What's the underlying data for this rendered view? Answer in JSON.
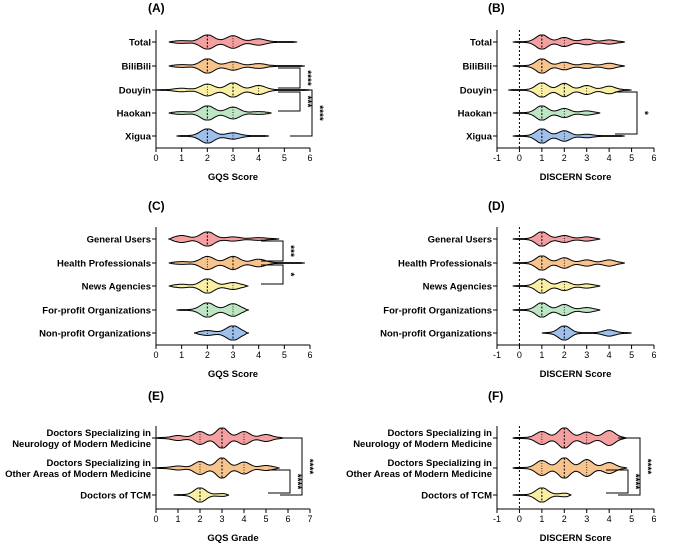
{
  "colors": {
    "red": "#f4a0a0",
    "orange": "#f7c48e",
    "yellow": "#f9f0a6",
    "green": "#bfe6c4",
    "blue": "#9fc0ea"
  },
  "chart_data": [
    {
      "panel": "(A)",
      "type": "violin",
      "xlabel": "GQS Score",
      "xlim": [
        0,
        6
      ],
      "xticks": [
        0,
        1,
        2,
        3,
        4,
        5,
        6
      ],
      "zero_line": false,
      "categories": [
        "Total",
        "BiliBili",
        "Douyin",
        "Haokan",
        "Xigua"
      ],
      "series": [
        {
          "name": "Total",
          "color": "red",
          "range": [
            0.5,
            5.5
          ],
          "median": 2,
          "q1": 2,
          "q3": 3,
          "peaks": [
            [
              2,
              1
            ],
            [
              3,
              0.85
            ],
            [
              4,
              0.4
            ],
            [
              1,
              0.15
            ]
          ]
        },
        {
          "name": "BiliBili",
          "color": "orange",
          "range": [
            0.5,
            5.8
          ],
          "median": 2,
          "q1": 2,
          "q3": 3,
          "peaks": [
            [
              2,
              1
            ],
            [
              3,
              0.55
            ],
            [
              4,
              0.3
            ],
            [
              1,
              0.15
            ]
          ]
        },
        {
          "name": "Douyin",
          "color": "yellow",
          "range": [
            0,
            6
          ],
          "median": 3,
          "q1": 2,
          "q3": 4,
          "peaks": [
            [
              2,
              0.8
            ],
            [
              3,
              1
            ],
            [
              4,
              0.6
            ],
            [
              1,
              0.2
            ]
          ]
        },
        {
          "name": "Haokan",
          "color": "green",
          "range": [
            0.5,
            4.5
          ],
          "median": 2,
          "q1": 2,
          "q3": 3,
          "peaks": [
            [
              2,
              1
            ],
            [
              3,
              0.8
            ],
            [
              1,
              0.15
            ],
            [
              4,
              0.15
            ]
          ]
        },
        {
          "name": "Xigua",
          "color": "blue",
          "range": [
            0.8,
            4.4
          ],
          "median": 2,
          "q1": 2,
          "q3": 3,
          "peaks": [
            [
              2,
              1
            ],
            [
              3,
              0.4
            ]
          ]
        }
      ],
      "brackets": [
        {
          "from": "BiliBili",
          "to": "Douyin",
          "label": "****",
          "level": 0
        },
        {
          "from": "Douyin",
          "to": "Haokan",
          "label": "***",
          "level": 0
        },
        {
          "from": "Douyin",
          "to": "Xigua",
          "label": "****",
          "level": 1
        }
      ]
    },
    {
      "panel": "(B)",
      "type": "violin",
      "xlabel": "DISCERN Score",
      "xlim": [
        -1,
        6
      ],
      "xticks": [
        -1,
        0,
        1,
        2,
        3,
        4,
        5,
        6
      ],
      "zero_line": true,
      "categories": [
        "Total",
        "BiliBili",
        "Douyin",
        "Haokan",
        "Xigua"
      ],
      "series": [
        {
          "name": "Total",
          "color": "red",
          "range": [
            -0.3,
            4.7
          ],
          "median": 1,
          "q1": 1,
          "q3": 2,
          "peaks": [
            [
              1,
              1
            ],
            [
              2,
              0.6
            ],
            [
              3,
              0.35
            ],
            [
              4,
              0.25
            ]
          ]
        },
        {
          "name": "BiliBili",
          "color": "orange",
          "range": [
            -0.3,
            4.7
          ],
          "median": 1,
          "q1": 1,
          "q3": 2,
          "peaks": [
            [
              1,
              1
            ],
            [
              2,
              0.5
            ],
            [
              3,
              0.3
            ],
            [
              4,
              0.35
            ]
          ]
        },
        {
          "name": "Douyin",
          "color": "yellow",
          "range": [
            -0.5,
            5
          ],
          "median": 2,
          "q1": 1,
          "q3": 3,
          "peaks": [
            [
              1,
              1
            ],
            [
              2,
              0.9
            ],
            [
              3,
              0.6
            ],
            [
              4,
              0.5
            ]
          ]
        },
        {
          "name": "Haokan",
          "color": "green",
          "range": [
            -0.3,
            3.6
          ],
          "median": 1,
          "q1": 1,
          "q3": 2,
          "peaks": [
            [
              1,
              1
            ],
            [
              2,
              0.6
            ],
            [
              3,
              0.25
            ]
          ]
        },
        {
          "name": "Xigua",
          "color": "blue",
          "range": [
            -0.3,
            4.7
          ],
          "median": 1,
          "q1": 1,
          "q3": 2,
          "peaks": [
            [
              1,
              1
            ],
            [
              2,
              0.7
            ],
            [
              3,
              0.2
            ]
          ]
        }
      ],
      "brackets": [
        {
          "from": "Douyin",
          "to": "Xigua",
          "label": "*",
          "level": 0
        }
      ]
    },
    {
      "panel": "(C)",
      "type": "violin",
      "xlabel": "GQS Score",
      "xlim": [
        0,
        6
      ],
      "xticks": [
        0,
        1,
        2,
        3,
        4,
        5,
        6
      ],
      "zero_line": false,
      "categories": [
        "General Users",
        "Health Professionals",
        "News Agencies",
        "For-profit Organizations",
        "Non-profit Organizations"
      ],
      "series": [
        {
          "name": "General Users",
          "color": "red",
          "range": [
            0.5,
            4.8
          ],
          "median": 2,
          "q1": 2,
          "q3": 2,
          "peaks": [
            [
              1,
              0.45
            ],
            [
              2,
              1
            ],
            [
              3,
              0.25
            ],
            [
              4,
              0.15
            ]
          ]
        },
        {
          "name": "Health Professionals",
          "color": "orange",
          "range": [
            0.5,
            5.8
          ],
          "median": 3,
          "q1": 2,
          "q3": 3,
          "peaks": [
            [
              2,
              0.9
            ],
            [
              3,
              0.9
            ],
            [
              4,
              0.5
            ],
            [
              1,
              0.15
            ]
          ]
        },
        {
          "name": "News Agencies",
          "color": "yellow",
          "range": [
            0.5,
            3.6
          ],
          "median": 2,
          "q1": 2,
          "q3": 3,
          "peaks": [
            [
              2,
              1
            ],
            [
              3,
              0.45
            ],
            [
              1,
              0.2
            ]
          ]
        },
        {
          "name": "For-profit Organizations",
          "color": "green",
          "range": [
            0.8,
            3.6
          ],
          "median": 2,
          "q1": 2,
          "q3": 3,
          "peaks": [
            [
              2,
              1
            ],
            [
              3,
              0.85
            ]
          ]
        },
        {
          "name": "Non-profit Organizations",
          "color": "blue",
          "range": [
            1.5,
            3.6
          ],
          "median": 3,
          "q1": 2,
          "q3": 3,
          "peaks": [
            [
              2,
              0.3
            ],
            [
              3,
              1
            ]
          ]
        }
      ],
      "brackets": [
        {
          "from": "General Users",
          "to": "Health Professionals",
          "label": "***",
          "level": 0
        },
        {
          "from": "Health Professionals",
          "to": "News Agencies",
          "label": "*",
          "level": 0
        }
      ]
    },
    {
      "panel": "(D)",
      "type": "violin",
      "xlabel": "DISCERN Score",
      "xlim": [
        -1,
        6
      ],
      "xticks": [
        -1,
        0,
        1,
        2,
        3,
        4,
        5,
        6
      ],
      "zero_line": true,
      "categories": [
        "General Users",
        "Health Professionals",
        "News Agencies",
        "For-profit Organizations",
        "Non-profit Organizations"
      ],
      "series": [
        {
          "name": "General Users",
          "color": "red",
          "range": [
            -0.3,
            3.6
          ],
          "median": 1,
          "q1": 1,
          "q3": 2,
          "peaks": [
            [
              1,
              1
            ],
            [
              2,
              0.45
            ],
            [
              3,
              0.25
            ]
          ]
        },
        {
          "name": "Health Professionals",
          "color": "orange",
          "range": [
            -0.3,
            4.7
          ],
          "median": 1,
          "q1": 1,
          "q3": 2,
          "peaks": [
            [
              1,
              1
            ],
            [
              2,
              0.7
            ],
            [
              3,
              0.4
            ],
            [
              4,
              0.4
            ]
          ]
        },
        {
          "name": "News Agencies",
          "color": "yellow",
          "range": [
            -0.3,
            3.6
          ],
          "median": 1,
          "q1": 1,
          "q3": 2,
          "peaks": [
            [
              1,
              1
            ],
            [
              2,
              0.6
            ],
            [
              3,
              0.25
            ]
          ]
        },
        {
          "name": "For-profit Organizations",
          "color": "green",
          "range": [
            -0.3,
            3.6
          ],
          "median": 1,
          "q1": 1,
          "q3": 2,
          "peaks": [
            [
              1,
              1
            ],
            [
              2,
              0.75
            ],
            [
              3,
              0.3
            ]
          ]
        },
        {
          "name": "Non-profit Organizations",
          "color": "blue",
          "range": [
            1.0,
            5.0
          ],
          "median": 2,
          "q1": 2,
          "q3": 3,
          "peaks": [
            [
              2,
              1
            ],
            [
              4,
              0.4
            ]
          ]
        }
      ],
      "brackets": []
    },
    {
      "panel": "(E)",
      "type": "violin",
      "xlabel": "GQS Grade",
      "xlim": [
        0,
        7
      ],
      "xticks": [
        0,
        1,
        2,
        3,
        4,
        5,
        6,
        7
      ],
      "zero_line": false,
      "categories": [
        [
          "Doctors Specializing in",
          "Neurology of Modern Medicine"
        ],
        [
          "Doctors Specializing in",
          "Other Areas of Modern Medicine"
        ],
        [
          "Doctors of TCM"
        ]
      ],
      "series": [
        {
          "name": "Doctors Specializing in Neurology of Modern Medicine",
          "color": "red",
          "range": [
            0,
            5.8
          ],
          "median": 3,
          "q1": 2,
          "q3": 4,
          "peaks": [
            [
              1,
              0.2
            ],
            [
              2,
              0.6
            ],
            [
              3,
              1
            ],
            [
              4,
              0.6
            ],
            [
              5,
              0.3
            ]
          ]
        },
        {
          "name": "Doctors Specializing in Other Areas of Modern Medicine",
          "color": "orange",
          "range": [
            0,
            5.6
          ],
          "median": 3,
          "q1": 2,
          "q3": 4,
          "peaks": [
            [
              1,
              0.15
            ],
            [
              2,
              0.6
            ],
            [
              3,
              1
            ],
            [
              4,
              0.55
            ],
            [
              5,
              0.2
            ]
          ]
        },
        {
          "name": "Doctors of TCM",
          "color": "yellow",
          "range": [
            0.8,
            3.3
          ],
          "median": 2,
          "q1": 2,
          "q3": 2,
          "peaks": [
            [
              2,
              1
            ],
            [
              3,
              0.15
            ]
          ]
        }
      ],
      "brackets": [
        {
          "from": 1,
          "to": 2,
          "label": "****",
          "level": 0
        },
        {
          "from": 0,
          "to": 2,
          "label": "****",
          "level": 1
        }
      ]
    },
    {
      "panel": "(F)",
      "type": "violin",
      "xlabel": "DISCERN Score",
      "xlim": [
        -1,
        6
      ],
      "xticks": [
        -1,
        0,
        1,
        2,
        3,
        4,
        5,
        6
      ],
      "zero_line": true,
      "categories": [
        [
          "Doctors Specializing in",
          "Neurology of Modern Medicine"
        ],
        [
          "Doctors Specializing in",
          "Other Areas of Modern Medicine"
        ],
        [
          "Doctors of TCM"
        ]
      ],
      "series": [
        {
          "name": "Doctors Specializing in Neurology of Modern Medicine",
          "color": "red",
          "range": [
            -0.3,
            4.8
          ],
          "median": 2,
          "q1": 1,
          "q3": 3,
          "peaks": [
            [
              1,
              0.6
            ],
            [
              2,
              1
            ],
            [
              3,
              0.55
            ],
            [
              4,
              0.7
            ]
          ]
        },
        {
          "name": "Doctors Specializing in Other Areas of Modern Medicine",
          "color": "orange",
          "range": [
            -0.3,
            4.8
          ],
          "median": 2,
          "q1": 1,
          "q3": 3,
          "peaks": [
            [
              1,
              0.7
            ],
            [
              2,
              1
            ],
            [
              3,
              0.8
            ],
            [
              4,
              0.5
            ]
          ]
        },
        {
          "name": "Doctors of TCM",
          "color": "yellow",
          "range": [
            -0.3,
            2.3
          ],
          "median": 1,
          "q1": 1,
          "q3": 1,
          "peaks": [
            [
              1,
              1
            ],
            [
              2,
              0.2
            ]
          ]
        }
      ],
      "brackets": [
        {
          "from": 1,
          "to": 2,
          "label": "****",
          "level": 0
        },
        {
          "from": 0,
          "to": 2,
          "label": "****",
          "level": 1
        }
      ]
    }
  ]
}
